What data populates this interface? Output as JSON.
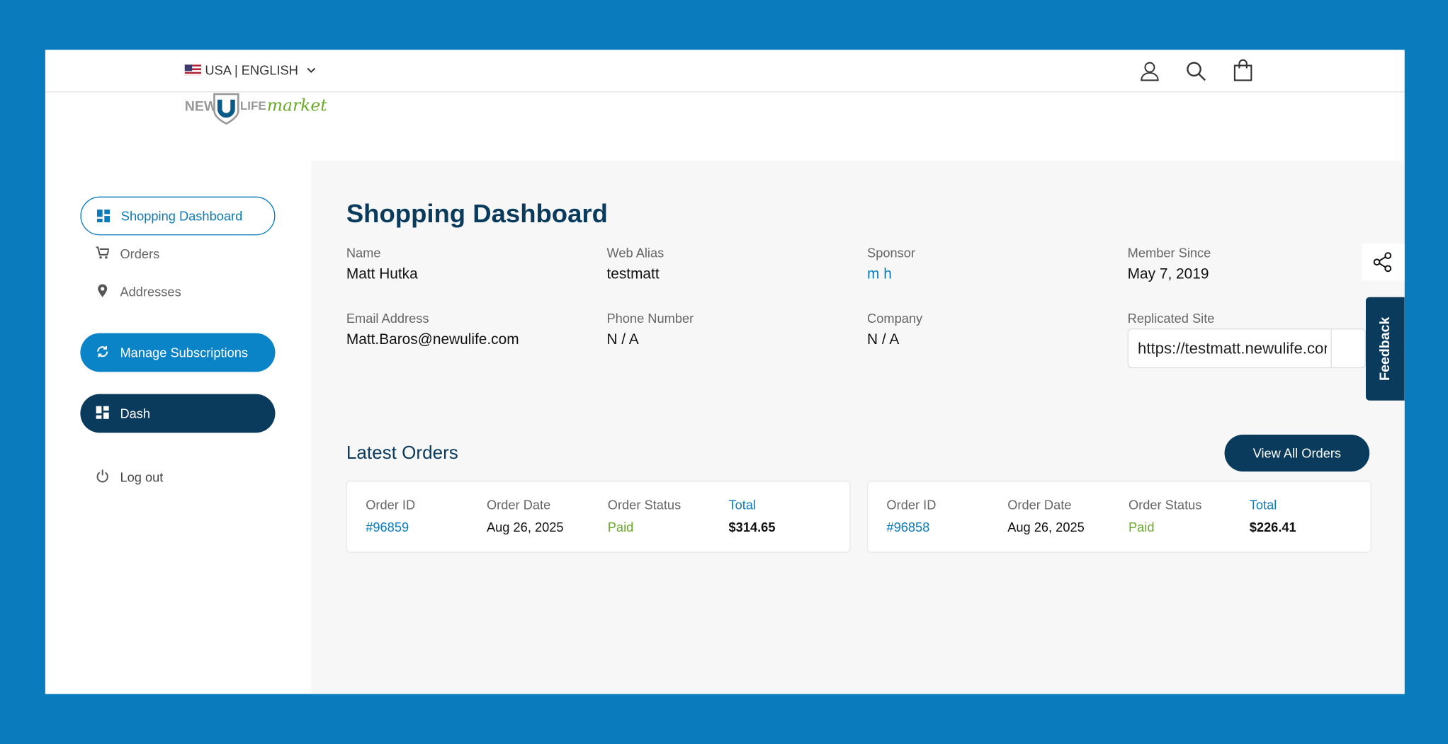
{
  "header": {
    "locale": "USA | ENGLISH",
    "logo": {
      "left": "NEW",
      "right": "LIFE",
      "script": "market"
    }
  },
  "sidebar": {
    "nav": [
      "Shopping Dashboard",
      "Orders",
      "Addresses"
    ],
    "buttons": [
      "Manage Subscriptions",
      "Dash"
    ],
    "logout": "Log out"
  },
  "main": {
    "title": "Shopping Dashboard",
    "fields": [
      {
        "label": "Name",
        "value": "Matt Hutka"
      },
      {
        "label": "Web Alias",
        "value": "testmatt"
      },
      {
        "label": "Sponsor",
        "value": "m h"
      },
      {
        "label": "Member Since",
        "value": "May 7, 2019"
      },
      {
        "label": "Email Address",
        "value": "Matt.Baros@newulife.com"
      },
      {
        "label": "Phone Number",
        "value": "N / A"
      },
      {
        "label": "Company",
        "value": "N / A"
      }
    ],
    "replicated_site": {
      "label": "Replicated Site",
      "value": "https://testmatt.newulife.com"
    },
    "latest_orders": {
      "title": "Latest Orders",
      "button": "View All Orders",
      "columns": [
        "Order ID",
        "Order Date",
        "Order Status",
        "Total"
      ],
      "orders": [
        [
          "#96859",
          "Aug 26, 2025",
          "Paid",
          "$314.65"
        ],
        [
          "#96858",
          "Aug 26, 2025",
          "Paid",
          "$226.41"
        ]
      ]
    }
  },
  "feedback": "Feedback"
}
